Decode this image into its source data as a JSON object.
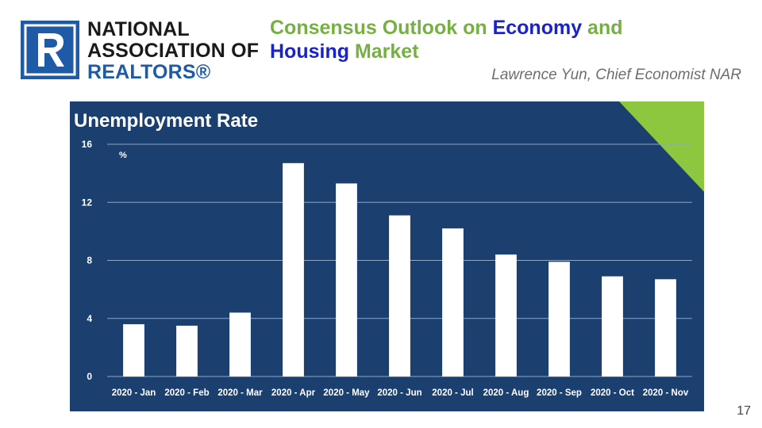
{
  "logo": {
    "line1": "NATIONAL",
    "line2": "ASSOCIATION OF",
    "line3": "REALTORS®",
    "mark_icon": "realtor-r-icon"
  },
  "header": {
    "title_part1": "Consensus Outlook on ",
    "title_highlight1": "Economy",
    "title_part2": " and ",
    "title_highlight2": "Housing",
    "title_part3": " Market",
    "author": "Lawrence Yun, Chief Economist NAR"
  },
  "colors": {
    "panel": "#1b3f6e",
    "accent_triangle": "#8dc63f",
    "bar": "#ffffff",
    "title_green": "#76b043",
    "title_blue": "#1a22c9"
  },
  "chart_data": {
    "type": "bar",
    "title": "Unemployment Rate",
    "ylabel": "%",
    "categories": [
      "2020 - Jan",
      "2020 - Feb",
      "2020 - Mar",
      "2020 - Apr",
      "2020 - May",
      "2020 - Jun",
      "2020 - Jul",
      "2020 - Aug",
      "2020 - Sep",
      "2020 - Oct",
      "2020 - Nov"
    ],
    "values": [
      3.6,
      3.5,
      4.4,
      14.7,
      13.3,
      11.1,
      10.2,
      8.4,
      7.9,
      6.9,
      6.7
    ],
    "ylim": [
      0,
      16
    ],
    "yticks": [
      0,
      4,
      8,
      12,
      16
    ],
    "grid": true,
    "legend": "none"
  },
  "footer": {
    "page_number": "17"
  }
}
